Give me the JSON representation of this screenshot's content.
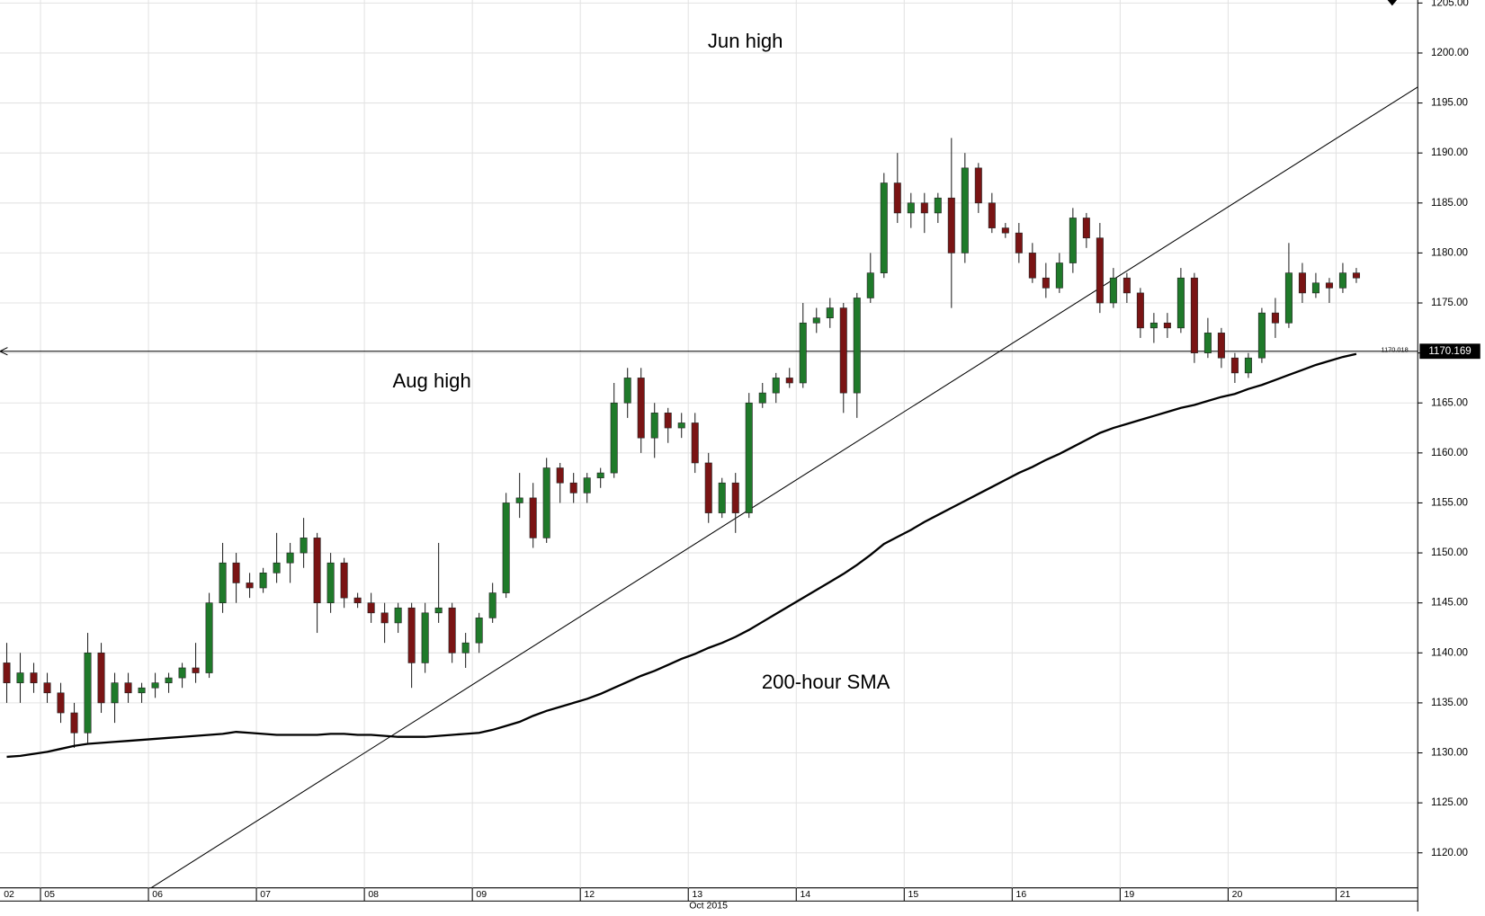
{
  "chart_data": {
    "type": "candlestick",
    "xlabel": "Oct 2015",
    "categories": [
      "02",
      null,
      null,
      "05",
      null,
      null,
      null,
      null,
      null,
      null,
      null,
      "06",
      null,
      null,
      null,
      null,
      null,
      null,
      null,
      "07",
      null,
      null,
      null,
      null,
      null,
      null,
      null,
      "08",
      null,
      null,
      null,
      null,
      null,
      null,
      null,
      "09",
      null,
      null,
      null,
      null,
      null,
      null,
      null,
      "12",
      null,
      null,
      null,
      null,
      null,
      null,
      null,
      "13",
      null,
      null,
      null,
      null,
      null,
      null,
      null,
      "14",
      null,
      null,
      null,
      null,
      null,
      null,
      null,
      "15",
      null,
      null,
      null,
      null,
      null,
      null,
      null,
      "16",
      null,
      null,
      null,
      null,
      null,
      null,
      null,
      "19",
      null,
      null,
      null,
      null,
      null,
      null,
      null,
      "20",
      null,
      null,
      null,
      null,
      null,
      null,
      null,
      "21",
      null
    ],
    "open": [
      1139,
      1137,
      1138,
      1137,
      1136,
      1134,
      1132,
      1140,
      1135,
      1137,
      1136,
      1136.5,
      1137,
      1137.5,
      1138.5,
      1138,
      1145,
      1149,
      1147,
      1146.5,
      1148,
      1149,
      1150,
      1151.5,
      1145,
      1149,
      1145.5,
      1145,
      1144,
      1143,
      1144.5,
      1139,
      1144,
      1144.5,
      1140,
      1141,
      1143.5,
      1146,
      1155,
      1155.5,
      1151.5,
      1158.5,
      1157,
      1156,
      1157.5,
      1158,
      1165,
      1167.5,
      1161.5,
      1164,
      1162.5,
      1163,
      1159,
      1154,
      1157,
      1154,
      1165,
      1166,
      1167.5,
      1167,
      1173,
      1173.5,
      1174.5,
      1166,
      1175.5,
      1178,
      1187,
      1184,
      1185,
      1184,
      1185.5,
      1180,
      1188.5,
      1185,
      1182.5,
      1182,
      1180,
      1177.5,
      1176.5,
      1179,
      1183.5,
      1181.5,
      1175,
      1177.5,
      1176,
      1172.5,
      1173,
      1172.5,
      1177.5,
      1170,
      1172,
      1169.5,
      1168,
      1169.5,
      1174,
      1173,
      1178,
      1176,
      1177,
      1176.5,
      1178
    ],
    "high": [
      1141,
      1140,
      1139,
      1138,
      1137,
      1135,
      1142,
      1141,
      1138,
      1138,
      1137,
      1138,
      1138,
      1139,
      1141,
      1146,
      1151,
      1150,
      1148,
      1148.5,
      1152,
      1151,
      1153.5,
      1152,
      1150,
      1149.5,
      1146,
      1146,
      1145,
      1145,
      1145,
      1145,
      1151,
      1145,
      1142,
      1144,
      1147,
      1156,
      1158,
      1157,
      1159.5,
      1159,
      1158,
      1158,
      1158.5,
      1167,
      1168.5,
      1168.5,
      1165,
      1164.5,
      1164,
      1164,
      1160,
      1157.5,
      1158,
      1166,
      1167,
      1168,
      1168.5,
      1175,
      1174.5,
      1175.5,
      1175,
      1176,
      1180,
      1188,
      1190,
      1186,
      1186,
      1186,
      1191.5,
      1190,
      1189,
      1186,
      1183,
      1183,
      1181,
      1179,
      1180,
      1184.5,
      1184,
      1183,
      1178.5,
      1178,
      1176.5,
      1174,
      1174,
      1178.5,
      1178,
      1173.5,
      1172.5,
      1170,
      1170,
      1174.5,
      1175.5,
      1181,
      1179,
      1178,
      1177.5,
      1179,
      1178.5
    ],
    "low": [
      1135,
      1135,
      1136,
      1135,
      1133,
      1130.5,
      1131,
      1134,
      1133,
      1135,
      1135,
      1135.5,
      1136,
      1136.5,
      1137,
      1137.5,
      1144,
      1145,
      1145.5,
      1146,
      1147,
      1147,
      1148.5,
      1142,
      1144,
      1144.5,
      1144.5,
      1143,
      1141,
      1142,
      1136.5,
      1138,
      1143,
      1139,
      1138.5,
      1140,
      1143,
      1145.5,
      1153.5,
      1150.5,
      1151,
      1155,
      1155,
      1155,
      1156.5,
      1157.5,
      1163.5,
      1160,
      1159.5,
      1161,
      1161.5,
      1158,
      1153,
      1153.5,
      1152,
      1153.5,
      1164.5,
      1165,
      1166.5,
      1166.5,
      1172,
      1172.5,
      1164,
      1163.5,
      1175,
      1177.5,
      1183,
      1182.5,
      1182,
      1183,
      1174.5,
      1179,
      1184,
      1182,
      1181.5,
      1179,
      1177,
      1175.5,
      1176,
      1178,
      1180.5,
      1174,
      1174.5,
      1175,
      1171.5,
      1171,
      1171.5,
      1172,
      1169,
      1169.5,
      1168.5,
      1167,
      1167.5,
      1169,
      1171.5,
      1172.5,
      1175,
      1175.5,
      1175,
      1176,
      1177
    ],
    "close": [
      1137,
      1138,
      1137,
      1136,
      1134,
      1132,
      1140,
      1135,
      1137,
      1136,
      1136.5,
      1137,
      1137.5,
      1138.5,
      1138,
      1145,
      1149,
      1147,
      1146.5,
      1148,
      1149,
      1150,
      1151.5,
      1145,
      1149,
      1145.5,
      1145,
      1144,
      1143,
      1144.5,
      1139,
      1144,
      1144.5,
      1140,
      1141,
      1143.5,
      1146,
      1155,
      1155.5,
      1151.5,
      1158.5,
      1157,
      1156,
      1157.5,
      1158,
      1165,
      1167.5,
      1161.5,
      1164,
      1162.5,
      1163,
      1159,
      1154,
      1157,
      1154,
      1165,
      1166,
      1167.5,
      1167,
      1173,
      1173.5,
      1174.5,
      1166,
      1175.5,
      1178,
      1187,
      1184,
      1185,
      1184,
      1185.5,
      1180,
      1188.5,
      1185,
      1182.5,
      1182,
      1180,
      1177.5,
      1176.5,
      1179,
      1183.5,
      1181.5,
      1175,
      1177.5,
      1176,
      1172.5,
      1173,
      1172.5,
      1177.5,
      1170,
      1172,
      1169.5,
      1168,
      1169.5,
      1174,
      1173,
      1178,
      1176,
      1177,
      1176.5,
      1178,
      1177.5
    ],
    "up_color": "#1f7a2a",
    "down_color": "#7a1414",
    "sma": {
      "color": "#000000",
      "values": [
        1129.6,
        1129.7,
        1129.9,
        1130.1,
        1130.4,
        1130.7,
        1130.9,
        1131.0,
        1131.1,
        1131.2,
        1131.3,
        1131.4,
        1131.5,
        1131.6,
        1131.7,
        1131.8,
        1131.9,
        1132.1,
        1132.0,
        1131.9,
        1131.8,
        1131.8,
        1131.8,
        1131.8,
        1131.9,
        1131.9,
        1131.8,
        1131.8,
        1131.7,
        1131.6,
        1131.6,
        1131.6,
        1131.7,
        1131.8,
        1131.9,
        1132.0,
        1132.3,
        1132.7,
        1133.1,
        1133.7,
        1134.2,
        1134.6,
        1135.0,
        1135.4,
        1135.9,
        1136.5,
        1137.1,
        1137.7,
        1138.2,
        1138.8,
        1139.4,
        1139.9,
        1140.5,
        1141.0,
        1141.6,
        1142.3,
        1143.1,
        1143.9,
        1144.7,
        1145.5,
        1146.3,
        1147.1,
        1147.9,
        1148.8,
        1149.8,
        1150.9,
        1151.6,
        1152.3,
        1153.1,
        1153.8,
        1154.5,
        1155.2,
        1155.9,
        1156.6,
        1157.3,
        1158.0,
        1158.6,
        1159.3,
        1159.9,
        1160.6,
        1161.3,
        1162.0,
        1162.5,
        1162.9,
        1163.3,
        1163.7,
        1164.1,
        1164.5,
        1164.8,
        1165.2,
        1165.6,
        1165.9,
        1166.4,
        1166.8,
        1167.3,
        1167.8,
        1168.3,
        1168.8,
        1169.2,
        1169.6,
        1169.9
      ]
    },
    "trendline": {
      "x": [
        10.7,
        104.55
      ],
      "y": [
        1116.5,
        1196.6
      ]
    },
    "price_line": 1170.169,
    "sma_last_label": 1170.018,
    "annotations": [
      "Jun high",
      "Aug high",
      "200-hour SMA"
    ],
    "ylim": [
      1116.5,
      1205.3
    ],
    "yticks": [
      {
        "value": 1120,
        "label": "1120.00"
      },
      {
        "value": 1125,
        "label": "1125.00"
      },
      {
        "value": 1130,
        "label": "1130.00"
      },
      {
        "value": 1135,
        "label": "1135.00"
      },
      {
        "value": 1140,
        "label": "1140.00"
      },
      {
        "value": 1145,
        "label": "1145.00"
      },
      {
        "value": 1150,
        "label": "1150.00"
      },
      {
        "value": 1155,
        "label": "1155.00"
      },
      {
        "value": 1160,
        "label": "1160.00"
      },
      {
        "value": 1165,
        "label": "1165.00"
      },
      {
        "value": 1170,
        "label": "1170.00"
      },
      {
        "value": 1175,
        "label": "1175.00"
      },
      {
        "value": 1180,
        "label": "1180.00"
      },
      {
        "value": 1185,
        "label": "1185.00"
      },
      {
        "value": 1190,
        "label": "1190.00"
      },
      {
        "value": 1195,
        "label": "1195.00"
      },
      {
        "value": 1200,
        "label": "1200.00"
      },
      {
        "value": 1205,
        "label": "1205.00"
      }
    ],
    "grid": true
  }
}
